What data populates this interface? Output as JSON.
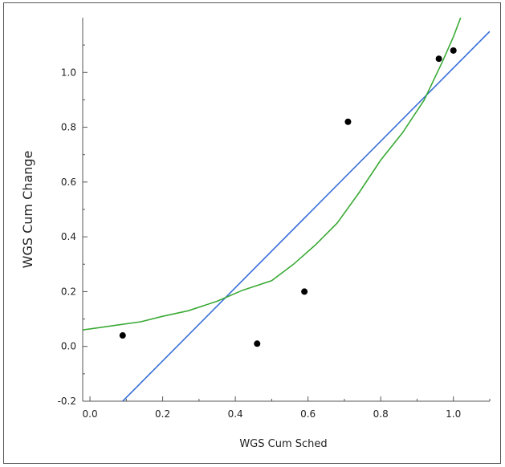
{
  "chart_data": {
    "type": "scatter",
    "title": "",
    "xlabel": "WGS Cum Sched",
    "ylabel": "WGS Cum Change",
    "xlim": [
      -0.02,
      1.1
    ],
    "ylim": [
      -0.2,
      1.2
    ],
    "x_ticks": [
      "0.0",
      "0.2",
      "0.4",
      "0.6",
      "0.8",
      "1.0"
    ],
    "y_ticks": [
      "-0.2",
      "0.0",
      "0.2",
      "0.4",
      "0.6",
      "0.8",
      "1.0"
    ],
    "grid": false,
    "points": [
      {
        "x": 0.09,
        "y": 0.04
      },
      {
        "x": 0.46,
        "y": 0.01
      },
      {
        "x": 0.59,
        "y": 0.2
      },
      {
        "x": 0.71,
        "y": 0.82
      },
      {
        "x": 0.96,
        "y": 1.05
      },
      {
        "x": 1.0,
        "y": 1.08
      }
    ],
    "fit_lines": [
      {
        "kind": "linear",
        "color": "#3a6fd8",
        "points": [
          {
            "x": 0.09,
            "y": -0.2
          },
          {
            "x": 1.1,
            "y": 1.15
          }
        ]
      },
      {
        "kind": "curve",
        "color": "#3aaa35",
        "points": [
          {
            "x": -0.02,
            "y": 0.06
          },
          {
            "x": 0.06,
            "y": 0.075
          },
          {
            "x": 0.14,
            "y": 0.09
          },
          {
            "x": 0.2,
            "y": 0.11
          },
          {
            "x": 0.27,
            "y": 0.13
          },
          {
            "x": 0.35,
            "y": 0.165
          },
          {
            "x": 0.42,
            "y": 0.205
          },
          {
            "x": 0.5,
            "y": 0.24
          },
          {
            "x": 0.56,
            "y": 0.3
          },
          {
            "x": 0.62,
            "y": 0.37
          },
          {
            "x": 0.68,
            "y": 0.45
          },
          {
            "x": 0.74,
            "y": 0.56
          },
          {
            "x": 0.8,
            "y": 0.68
          },
          {
            "x": 0.86,
            "y": 0.78
          },
          {
            "x": 0.92,
            "y": 0.9
          },
          {
            "x": 0.97,
            "y": 1.04
          },
          {
            "x": 1.0,
            "y": 1.13
          },
          {
            "x": 1.02,
            "y": 1.2
          }
        ]
      }
    ]
  }
}
